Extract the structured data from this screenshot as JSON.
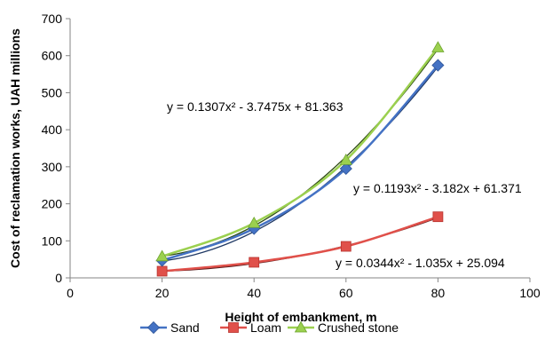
{
  "chart_data": {
    "type": "scatter",
    "xlabel": "Height of embankment, m",
    "ylabel": "Cost of reclamation works, UAH millions",
    "xlim": [
      0,
      100
    ],
    "ylim": [
      0,
      700
    ],
    "xticks": [
      "0",
      "20",
      "40",
      "60",
      "80",
      "100"
    ],
    "yticks": [
      "0",
      "100",
      "200",
      "300",
      "400",
      "500",
      "600",
      "700"
    ],
    "grid": false,
    "legend_position": "bottom",
    "series": [
      {
        "name": "Sand",
        "marker": "diamond",
        "color": "#4472C4",
        "trend_color": "#1F3864",
        "x": [
          20,
          40,
          60,
          80
        ],
        "y": [
          47,
          133,
          295,
          574
        ],
        "trendline": {
          "a": 0.1193,
          "b": -3.182,
          "c": 61.371
        },
        "equation": "y = 0.1193x² - 3.182x + 61.371"
      },
      {
        "name": "Loam",
        "marker": "square",
        "color": "#E0504A",
        "trend_color": "#5A1A1A",
        "x": [
          20,
          40,
          60,
          80
        ],
        "y": [
          18,
          42,
          85,
          165
        ],
        "trendline": {
          "a": 0.0344,
          "b": -1.035,
          "c": 25.094
        },
        "equation": "y = 0.0344x² - 1.035x + 25.094"
      },
      {
        "name": "Crushed stone",
        "marker": "triangle",
        "color": "#9BD04F",
        "trend_color": "#2E4A12",
        "x": [
          20,
          40,
          60,
          80
        ],
        "y": [
          58,
          148,
          318,
          622
        ],
        "trendline": {
          "a": 0.1307,
          "b": -3.7475,
          "c": 81.363
        },
        "equation": "y = 0.1307x² - 3.7475x + 81.363"
      }
    ]
  }
}
